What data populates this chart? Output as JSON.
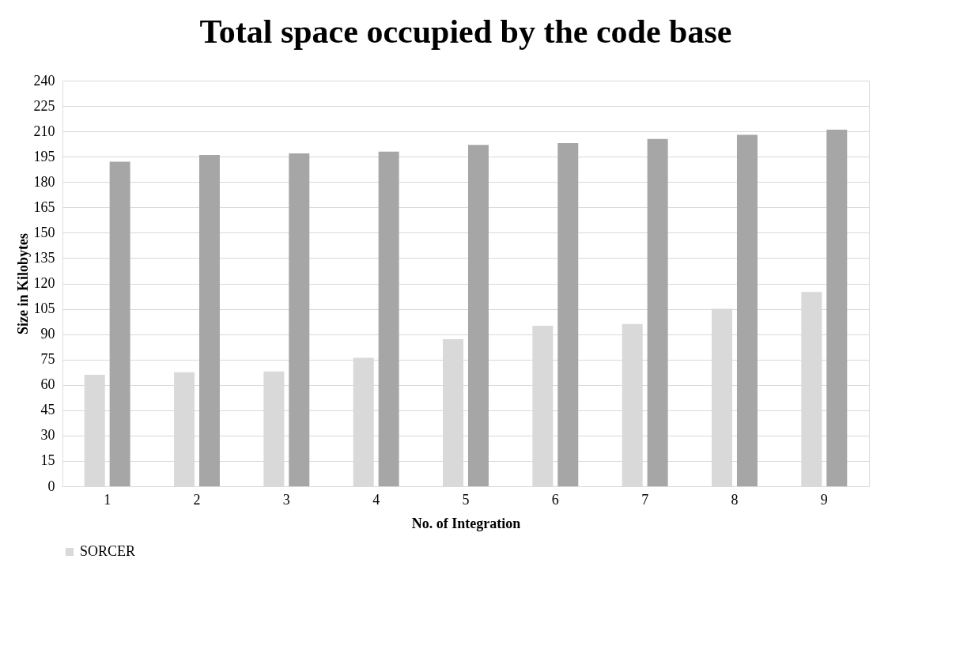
{
  "chart_data": {
    "type": "bar",
    "title": "Total space occupied by the code base",
    "xlabel": "No. of Integration",
    "ylabel": "Size in Kilobytes",
    "categories": [
      "1",
      "2",
      "3",
      "4",
      "5",
      "6",
      "7",
      "8",
      "9"
    ],
    "series": [
      {
        "name": "SORCER",
        "color": "#d9d9d9",
        "values": [
          66,
          67.5,
          68,
          76,
          87,
          95,
          96,
          105,
          115
        ]
      },
      {
        "color": "#a6a6a6",
        "values": [
          192,
          196,
          197,
          198,
          202,
          203,
          205.5,
          208,
          211
        ]
      }
    ],
    "ylim": [
      0,
      240
    ],
    "yticks": [
      0,
      15,
      30,
      45,
      60,
      75,
      90,
      105,
      120,
      135,
      150,
      165,
      180,
      195,
      210,
      225,
      240
    ],
    "grid": "y",
    "legend": "bottom"
  }
}
